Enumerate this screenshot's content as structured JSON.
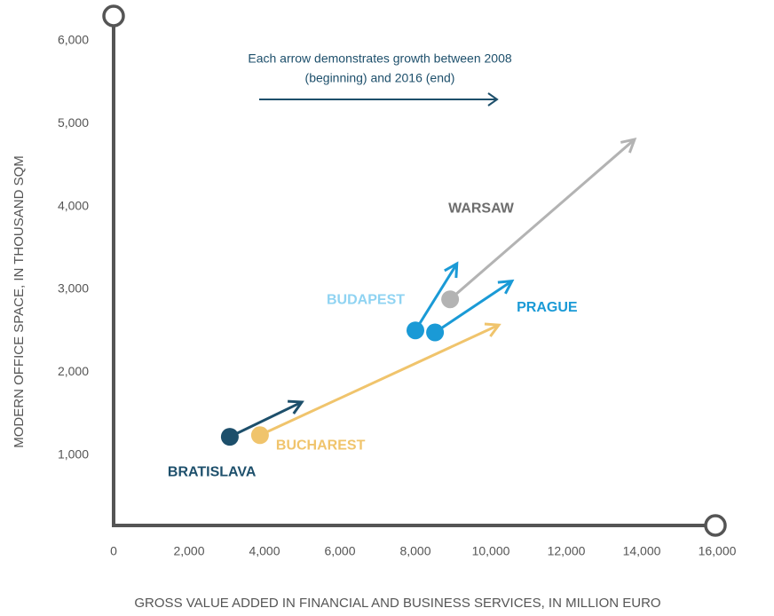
{
  "chart_data": {
    "type": "arrow",
    "annotation": [
      "Each arrow demonstrates growth between 2008",
      "(beginning) and 2016 (end)"
    ],
    "y_label": "MODERN OFFICE SPACE, IN THOUSAND  SQM",
    "x_label": "GROSS VALUE ADDED IN FINANCIAL AND BUSINESS SERVICES, IN MILLION EURO",
    "xlim": [
      0,
      16000
    ],
    "xticks": [
      0,
      {
        "value": 2000,
        "label": "2,000"
      },
      {
        "value": 4000,
        "label": "4,000"
      },
      {
        "value": 6000,
        "label": "6,000"
      },
      {
        "value": 8000,
        "label": "8,000"
      },
      {
        "value": 10000,
        "label": "10,000"
      },
      {
        "value": 12000,
        "label": "12,000"
      },
      {
        "value": 14000,
        "label": "14,000"
      },
      {
        "value": 16000,
        "label": "16,000"
      }
    ],
    "ylim": [
      0,
      6000
    ],
    "yticks": [
      {
        "value": 1000,
        "label": "1,000"
      },
      {
        "value": 2000,
        "label": "2,000"
      },
      {
        "value": 3000,
        "label": "3,000"
      },
      {
        "value": 4000,
        "label": "4,000"
      },
      {
        "value": 5000,
        "label": "5,000"
      },
      {
        "value": 6000,
        "label": "6,000"
      }
    ],
    "series": [
      {
        "name": "BRATISLAVA",
        "color": "#1d4f6b",
        "label_color": "#1d4f6b",
        "x": [
          3080,
          4990
        ],
        "values": [
          1220,
          1640
        ]
      },
      {
        "name": "BUCHAREST",
        "color": "#f0c46c",
        "label_color": "#f0c46c",
        "x": [
          3880,
          10210
        ],
        "values": [
          1240,
          2570
        ]
      },
      {
        "name": "BUDAPEST",
        "color": "#1a9ad6",
        "label_color": "#8fd3f2",
        "x": [
          8000,
          9100
        ],
        "values": [
          2505,
          3310
        ]
      },
      {
        "name": "PRAGUE",
        "color": "#1a9ad6",
        "label_color": "#1a9ad6",
        "x": [
          8520,
          10560
        ],
        "values": [
          2480,
          3100
        ]
      },
      {
        "name": "WARSAW",
        "color": "#b3b3b3",
        "label_color": "#6d6d6d",
        "x": [
          8920,
          13810
        ],
        "values": [
          2880,
          4810
        ]
      }
    ]
  }
}
